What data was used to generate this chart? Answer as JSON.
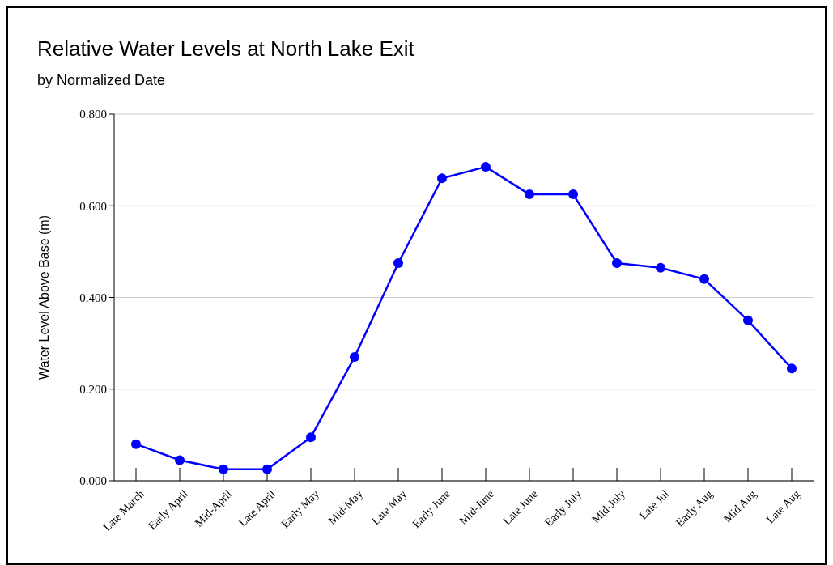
{
  "chart_data": {
    "type": "line",
    "title": "Relative Water Levels at North Lake Exit",
    "subtitle": "by Normalized Date",
    "ylabel": "Water Level Above Base (m)",
    "categories": [
      "Late March",
      "Early April",
      "Mid-April",
      "Late April",
      "Early May",
      "Mid-May",
      "Late May",
      "Early June",
      "Mid-June",
      "Late June",
      "Early July",
      "Mid-July",
      "Late Jul",
      "Early Aug",
      "Mid Aug",
      "Late Aug"
    ],
    "series": [
      {
        "color": "#0000ff",
        "values": [
          0.08,
          0.045,
          0.025,
          0.025,
          0.095,
          0.27,
          0.475,
          0.66,
          0.685,
          0.625,
          0.625,
          0.475,
          0.465,
          0.44,
          0.35,
          0.245
        ]
      }
    ],
    "ylim": [
      0,
      0.8
    ],
    "yticks": [
      {
        "value": 0,
        "label": "0.000"
      },
      {
        "value": 0.2,
        "label": "0.200"
      },
      {
        "value": 0.4,
        "label": "0.400"
      },
      {
        "value": 0.6,
        "label": "0.600"
      },
      {
        "value": 0.8,
        "label": "0.800"
      }
    ],
    "grid": "y",
    "marker": "circle",
    "line_style": "solid"
  }
}
